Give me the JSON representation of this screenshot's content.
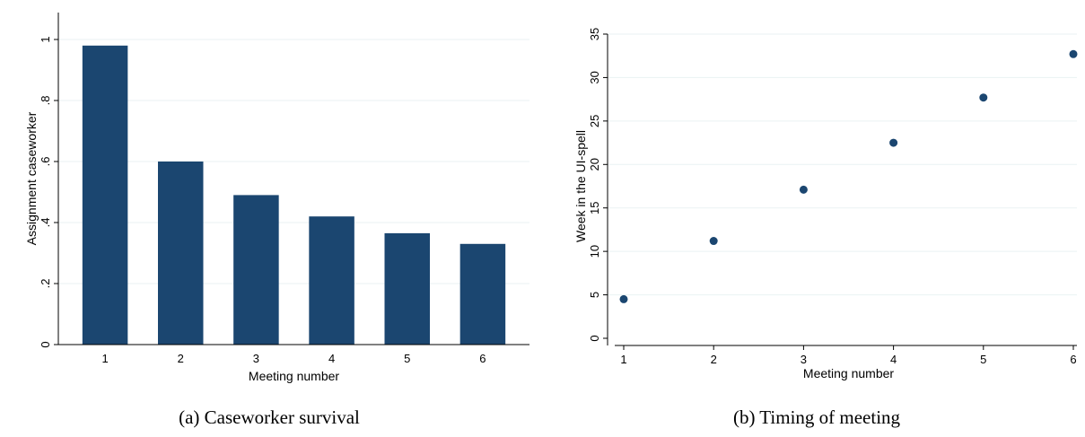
{
  "chart_data": [
    {
      "type": "bar",
      "categories": [
        "1",
        "2",
        "3",
        "4",
        "5",
        "6"
      ],
      "values": [
        0.98,
        0.6,
        0.49,
        0.42,
        0.365,
        0.33
      ],
      "xlabel": "Meeting number",
      "ylabel": "Assignment caseworker",
      "ylim": [
        0,
        1
      ],
      "yticks": [
        0,
        0.2,
        0.4,
        0.6,
        0.8,
        1
      ],
      "ytick_labels": [
        "0",
        ".2",
        ".4",
        ".6",
        ".8",
        "1"
      ],
      "grid": true,
      "color": "#1b4670"
    },
    {
      "type": "scatter",
      "x": [
        1,
        2,
        3,
        4,
        5,
        6
      ],
      "y": [
        4.5,
        11.2,
        17.1,
        22.5,
        27.7,
        32.7
      ],
      "xlabel": "Meeting number",
      "ylabel": "Week in the UI-spell",
      "ylim": [
        0,
        35
      ],
      "yticks": [
        0,
        5,
        10,
        15,
        20,
        25,
        30,
        35
      ],
      "ytick_labels": [
        "0",
        "5",
        "10",
        "15",
        "20",
        "25",
        "30",
        "35"
      ],
      "xticks": [
        1,
        2,
        3,
        4,
        5,
        6
      ],
      "xtick_labels": [
        "1",
        "2",
        "3",
        "4",
        "5",
        "6"
      ],
      "grid": true,
      "color": "#1b4670"
    }
  ],
  "captions": {
    "a": "(a) Caseworker survival",
    "b": "(b) Timing of meeting"
  }
}
